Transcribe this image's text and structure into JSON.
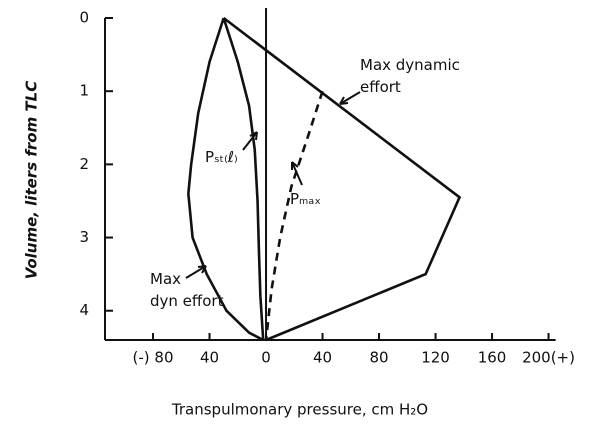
{
  "chart_data": {
    "type": "line",
    "xlabel": "Transpulmonary pressure, cm H₂O",
    "ylabel": "Volume, liters from TLC",
    "xlim": [
      -114,
      205
    ],
    "ylim": [
      4.4,
      0
    ],
    "xticks": [
      {
        "value": -80,
        "label": "(-) 80"
      },
      {
        "value": -40,
        "label": "40"
      },
      0,
      40,
      80,
      120,
      160,
      {
        "value": 200,
        "label": "200(+)"
      }
    ],
    "yticks": [
      0,
      1,
      2,
      3,
      4
    ],
    "series": [
      {
        "name": "Max dynamic\neffort",
        "color": "#111111",
        "dash": false,
        "x": [
          -30,
          137,
          113,
          0
        ],
        "values": [
          0,
          2.45,
          3.5,
          4.4
        ]
      },
      {
        "name": "Max\ndyn effort",
        "color": "#111111",
        "dash": false,
        "x": [
          -30,
          -40,
          -48,
          -53,
          -55,
          -52,
          -42,
          -28,
          -12,
          -2
        ],
        "values": [
          0,
          0.6,
          1.3,
          2.0,
          2.4,
          3.0,
          3.5,
          4.0,
          4.3,
          4.4
        ]
      },
      {
        "name": "Pₛₜ₍ℓ₎",
        "color": "#111111",
        "dash": false,
        "x": [
          -30,
          -20,
          -12,
          -8,
          -6,
          -5,
          -4,
          -2
        ],
        "values": [
          0,
          0.6,
          1.2,
          1.8,
          2.5,
          3.2,
          3.8,
          4.4
        ]
      },
      {
        "name": "Pₘₐₓ",
        "color": "#111111",
        "dash": true,
        "x": [
          40,
          30,
          18,
          10,
          4,
          0
        ],
        "values": [
          1.0,
          1.6,
          2.3,
          3.0,
          3.7,
          4.4
        ]
      }
    ]
  }
}
